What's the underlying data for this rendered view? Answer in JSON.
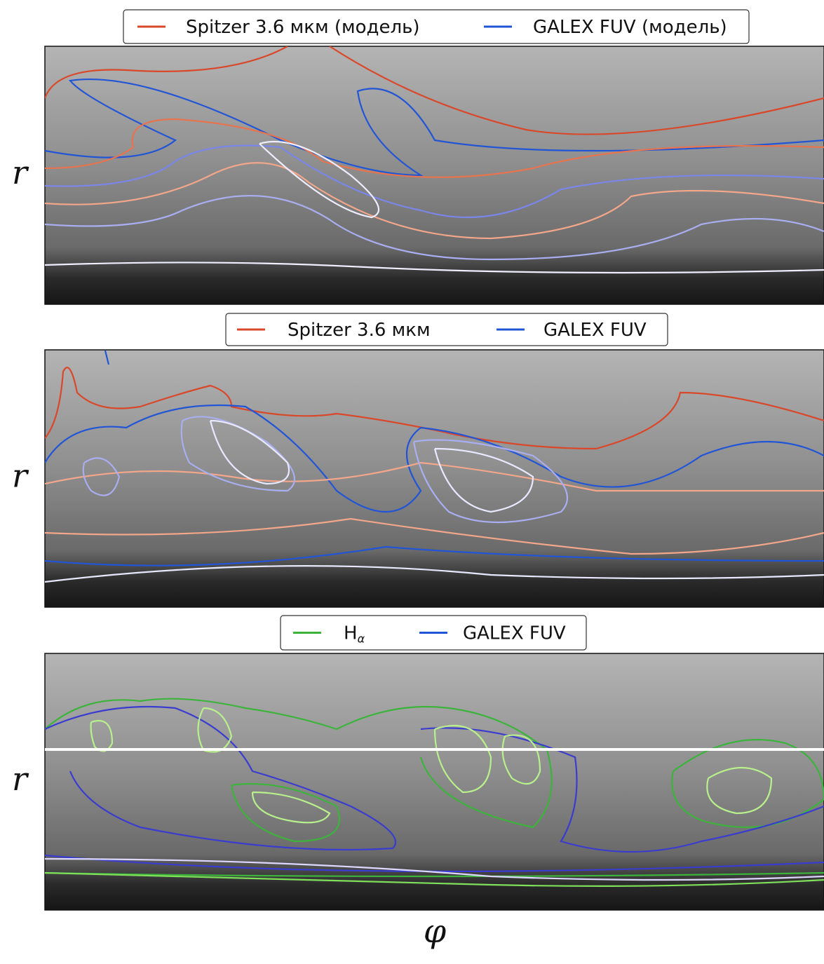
{
  "panels": [
    {
      "legend": [
        {
          "label": "Spitzer 3.6 мкм (модель)",
          "color": "#d9482a"
        },
        {
          "label": "GALEX FUV (модель)",
          "color": "#2255d6"
        }
      ],
      "y_label": "r"
    },
    {
      "legend": [
        {
          "label": "Spitzer 3.6 мкм",
          "color": "#d9482a"
        },
        {
          "label": "GALEX FUV",
          "color": "#2255d6"
        }
      ],
      "y_label": "r"
    },
    {
      "legend": [
        {
          "label": "H",
          "subscript": "α",
          "color": "#3cb43c"
        },
        {
          "label": "GALEX FUV",
          "color": "#2255d6"
        }
      ],
      "y_label": "r"
    }
  ],
  "x_label": "φ"
}
